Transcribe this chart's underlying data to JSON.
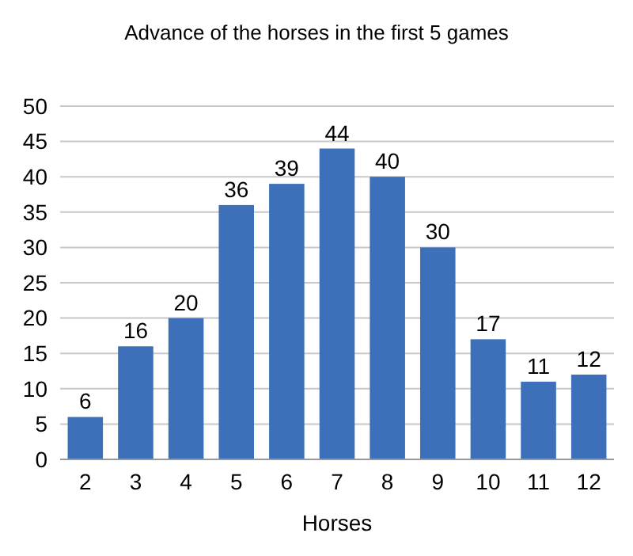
{
  "chart_data": {
    "type": "bar",
    "title": "Advance of the horses in the first 5 games",
    "xlabel": "Horses",
    "categories": [
      "2",
      "3",
      "4",
      "5",
      "6",
      "7",
      "8",
      "9",
      "10",
      "11",
      "12"
    ],
    "values": [
      6,
      16,
      20,
      36,
      39,
      44,
      40,
      30,
      17,
      11,
      12
    ],
    "color": "#3d70b8",
    "ylim": [
      0,
      50
    ],
    "yticks": [
      0,
      5,
      10,
      15,
      20,
      25,
      30,
      35,
      40,
      45,
      50
    ],
    "grid": "y",
    "data_labels": true
  }
}
